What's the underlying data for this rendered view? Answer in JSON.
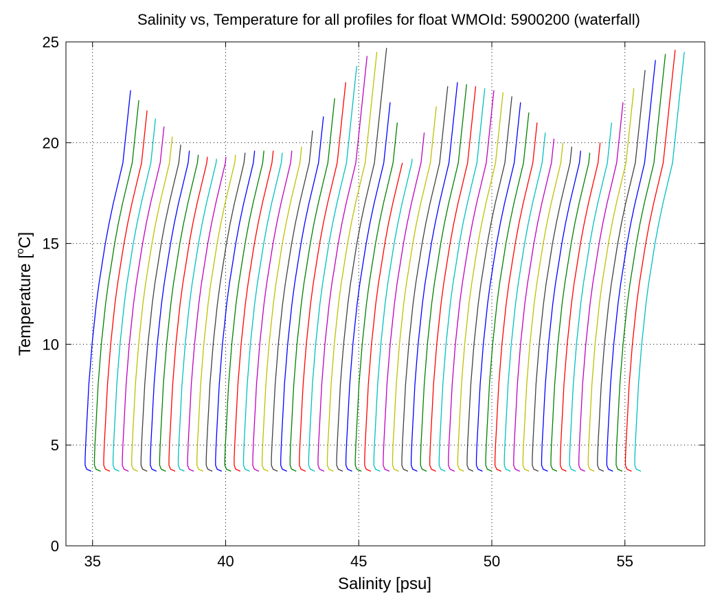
{
  "chart_data": {
    "type": "line",
    "title": "Salinity vs, Temperature for all profiles for float WMOId: 5900200 (waterfall)",
    "xlabel": "Salinity [psu]",
    "ylabel_main": "Temperature [",
    "ylabel_sup": "o",
    "ylabel_tail": "C]",
    "xlim": [
      34,
      58
    ],
    "ylim": [
      0,
      25
    ],
    "xticks": [
      35,
      40,
      45,
      50,
      55
    ],
    "yticks": [
      0,
      5,
      10,
      15,
      20,
      25
    ],
    "grid": true,
    "colors": [
      "#0000ff",
      "#008000",
      "#ff0000",
      "#00bfbf",
      "#bf00bf",
      "#bfbf00",
      "#404040"
    ],
    "profile_count": 60,
    "salinity_offset_step": 0.35,
    "base_profile": {
      "temperature": [
        3.7,
        3.8,
        4.0,
        4.3,
        5.0,
        6.0,
        7.0,
        8.0,
        9.0,
        10.0,
        11.0,
        12.0,
        13.0,
        14.0,
        15.0,
        16.0,
        17.0,
        18.0,
        19.0
      ],
      "salinity": [
        34.95,
        34.78,
        34.72,
        34.72,
        34.74,
        34.78,
        34.82,
        34.86,
        34.92,
        34.98,
        35.06,
        35.14,
        35.24,
        35.36,
        35.48,
        35.62,
        35.78,
        35.96,
        36.14
      ]
    },
    "surface_temperature": [
      22.6,
      22.1,
      21.6,
      21.2,
      20.8,
      20.3,
      19.9,
      19.6,
      19.4,
      19.3,
      19.2,
      19.3,
      19.4,
      19.5,
      19.6,
      19.6,
      19.6,
      19.5,
      19.6,
      19.8,
      20.6,
      21.3,
      22.2,
      23.0,
      23.8,
      24.3,
      24.5,
      24.7,
      22.0,
      21.0,
      19.0,
      19.2,
      20.5,
      21.8,
      22.8,
      23.0,
      22.9,
      22.8,
      22.7,
      22.6,
      22.5,
      22.3,
      22.0,
      21.5,
      21.0,
      20.5,
      20.2,
      20.0,
      19.8,
      19.6,
      19.5,
      20.0,
      21.0,
      22.0,
      22.7,
      23.6,
      24.1,
      24.4,
      24.6,
      24.5
    ]
  }
}
